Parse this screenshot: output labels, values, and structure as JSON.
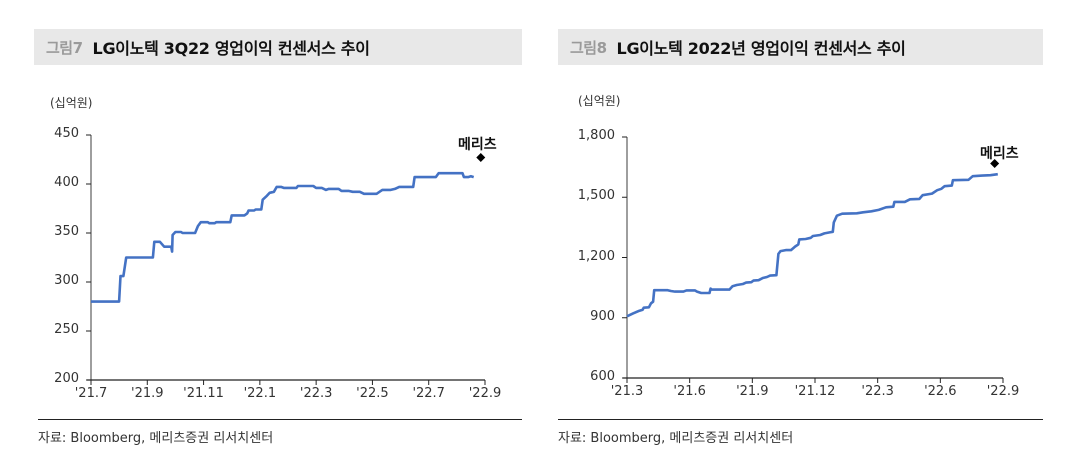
{
  "chart_data": [
    {
      "type": "line",
      "figure_no": "그림7",
      "title": "LG이노텍 3Q22 영업이익 컨센서스 추이",
      "ylabel": "(십억원)",
      "xlabel": "",
      "ylim": [
        200,
        450
      ],
      "yticks": [
        "450",
        "400",
        "350",
        "300",
        "250",
        "200"
      ],
      "ytick_values": [
        450,
        400,
        350,
        300,
        250,
        200
      ],
      "xticks": [
        "'21.7",
        "'21.9",
        "'21.11",
        "'22.1",
        "'22.3",
        "'22.5",
        "'22.7",
        "'22.9"
      ],
      "xtick_months": [
        0,
        2,
        4,
        6,
        8,
        10,
        12,
        14
      ],
      "x_range_months": [
        0,
        14
      ],
      "grid": false,
      "legend": null,
      "line_color": "#4472c4",
      "series": [
        {
          "name": "Bloomberg consensus",
          "points": [
            [
              0.0,
              280
            ],
            [
              1.0,
              280
            ],
            [
              1.05,
              306
            ],
            [
              1.15,
              306
            ],
            [
              1.25,
              325
            ],
            [
              2.2,
              325
            ],
            [
              2.25,
              341
            ],
            [
              2.45,
              341
            ],
            [
              2.6,
              336
            ],
            [
              2.85,
              336
            ],
            [
              2.88,
              331
            ],
            [
              2.9,
              348
            ],
            [
              3.0,
              351
            ],
            [
              3.2,
              351
            ],
            [
              3.25,
              350
            ],
            [
              3.7,
              350
            ],
            [
              3.8,
              357
            ],
            [
              3.9,
              361
            ],
            [
              4.15,
              361
            ],
            [
              4.2,
              360
            ],
            [
              4.4,
              360
            ],
            [
              4.45,
              361
            ],
            [
              4.95,
              361
            ],
            [
              5.0,
              368
            ],
            [
              5.45,
              368
            ],
            [
              5.55,
              370
            ],
            [
              5.6,
              373
            ],
            [
              5.8,
              373
            ],
            [
              5.85,
              374
            ],
            [
              6.05,
              374
            ],
            [
              6.1,
              384
            ],
            [
              6.25,
              388
            ],
            [
              6.35,
              391
            ],
            [
              6.5,
              392
            ],
            [
              6.6,
              397
            ],
            [
              6.75,
              397
            ],
            [
              6.85,
              396
            ],
            [
              7.3,
              396
            ],
            [
              7.35,
              398
            ],
            [
              7.9,
              398
            ],
            [
              8.0,
              396
            ],
            [
              8.2,
              396
            ],
            [
              8.35,
              394
            ],
            [
              8.45,
              395
            ],
            [
              8.8,
              395
            ],
            [
              8.9,
              393
            ],
            [
              9.15,
              393
            ],
            [
              9.3,
              392
            ],
            [
              9.55,
              392
            ],
            [
              9.7,
              390
            ],
            [
              10.15,
              390
            ],
            [
              10.35,
              394
            ],
            [
              10.65,
              394
            ],
            [
              10.8,
              395
            ],
            [
              10.95,
              397
            ],
            [
              11.45,
              397
            ],
            [
              11.5,
              407
            ],
            [
              12.25,
              407
            ],
            [
              12.35,
              411
            ],
            [
              13.2,
              411
            ],
            [
              13.25,
              407
            ],
            [
              13.4,
              407
            ],
            [
              13.5,
              408
            ],
            [
              13.6,
              407
            ]
          ]
        }
      ],
      "annotations": [
        {
          "label": "메리츠",
          "x_month": 13.85,
          "value": 427,
          "marker": "diamond"
        }
      ]
    },
    {
      "type": "line",
      "figure_no": "그림8",
      "title": "LG이노텍 2022년 영업이익 컨센서스 추이",
      "ylabel": "(십억원)",
      "xlabel": "",
      "ylim": [
        600,
        1800
      ],
      "yticks": [
        "1,800",
        "1,500",
        "1,200",
        "900",
        "600"
      ],
      "ytick_values": [
        1800,
        1500,
        1200,
        900,
        600
      ],
      "xticks": [
        "'21.3",
        "'21.6",
        "'21.9",
        "'21.12",
        "'22.3",
        "'22.6",
        "'22.9"
      ],
      "xtick_months": [
        0,
        3,
        6,
        9,
        12,
        15,
        18
      ],
      "x_range_months": [
        0,
        18
      ],
      "grid": false,
      "legend": null,
      "line_color": "#4472c4",
      "series": [
        {
          "name": "Bloomberg consensus",
          "points": [
            [
              0.0,
              907
            ],
            [
              0.3,
              922
            ],
            [
              0.6,
              935
            ],
            [
              0.75,
              940
            ],
            [
              0.8,
              950
            ],
            [
              1.05,
              952
            ],
            [
              1.15,
              972
            ],
            [
              1.25,
              980
            ],
            [
              1.3,
              1037
            ],
            [
              1.95,
              1037
            ],
            [
              2.1,
              1033
            ],
            [
              2.3,
              1030
            ],
            [
              2.7,
              1030
            ],
            [
              2.85,
              1036
            ],
            [
              3.25,
              1036
            ],
            [
              3.35,
              1030
            ],
            [
              3.55,
              1023
            ],
            [
              3.95,
              1023
            ],
            [
              4.0,
              1045
            ],
            [
              4.05,
              1040
            ],
            [
              4.9,
              1040
            ],
            [
              5.05,
              1057
            ],
            [
              5.25,
              1063
            ],
            [
              5.55,
              1068
            ],
            [
              5.7,
              1075
            ],
            [
              5.95,
              1077
            ],
            [
              6.05,
              1085
            ],
            [
              6.3,
              1087
            ],
            [
              6.5,
              1098
            ],
            [
              6.7,
              1103
            ],
            [
              6.85,
              1110
            ],
            [
              7.15,
              1112
            ],
            [
              7.25,
              1218
            ],
            [
              7.35,
              1232
            ],
            [
              7.6,
              1237
            ],
            [
              7.85,
              1237
            ],
            [
              8.05,
              1255
            ],
            [
              8.2,
              1265
            ],
            [
              8.25,
              1290
            ],
            [
              8.55,
              1292
            ],
            [
              8.8,
              1298
            ],
            [
              8.9,
              1307
            ],
            [
              9.25,
              1312
            ],
            [
              9.45,
              1320
            ],
            [
              9.7,
              1325
            ],
            [
              9.85,
              1328
            ],
            [
              9.9,
              1375
            ],
            [
              10.05,
              1408
            ],
            [
              10.3,
              1418
            ],
            [
              11.0,
              1420
            ],
            [
              11.3,
              1425
            ],
            [
              11.7,
              1430
            ],
            [
              12.05,
              1437
            ],
            [
              12.4,
              1450
            ],
            [
              12.75,
              1453
            ],
            [
              12.8,
              1477
            ],
            [
              13.3,
              1477
            ],
            [
              13.55,
              1490
            ],
            [
              14.0,
              1492
            ],
            [
              14.15,
              1510
            ],
            [
              14.6,
              1518
            ],
            [
              14.85,
              1535
            ],
            [
              15.05,
              1542
            ],
            [
              15.2,
              1555
            ],
            [
              15.55,
              1558
            ],
            [
              15.6,
              1585
            ],
            [
              16.35,
              1587
            ],
            [
              16.55,
              1605
            ],
            [
              17.0,
              1608
            ],
            [
              17.4,
              1610
            ],
            [
              17.75,
              1615
            ]
          ]
        }
      ],
      "annotations": [
        {
          "label": "메리츠",
          "x_month": 17.6,
          "value": 1668,
          "marker": "diamond"
        }
      ]
    }
  ],
  "panels": [
    {
      "figure_no": "그림7",
      "title": "LG이노텍 3Q22 영업이익 컨센서스 추이",
      "unit": "(십억원)",
      "annotation_label": "메리츠",
      "source": "자료: Bloomberg, 메리츠증권 리서치센터"
    },
    {
      "figure_no": "그림8",
      "title": "LG이노텍 2022년 영업이익 컨센서스 추이",
      "unit": "(십억원)",
      "annotation_label": "메리츠",
      "source": "자료: Bloomberg, 메리츠증권 리서치센터"
    }
  ],
  "colors": {
    "line": "#4472c4",
    "title_bar_bg": "#e8e8e8",
    "figure_no": "#9a9a9a",
    "axis": "#7f7f7f",
    "marker": "#000000"
  }
}
